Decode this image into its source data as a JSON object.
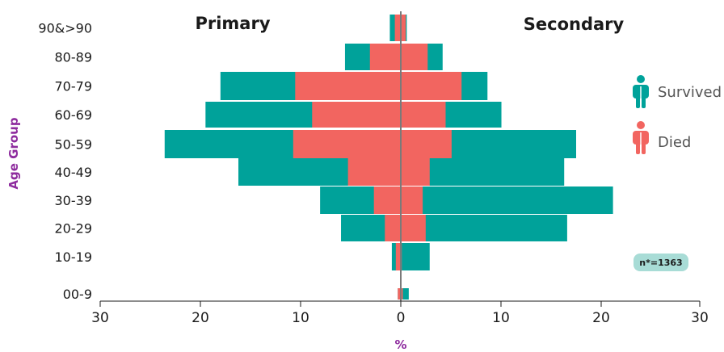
{
  "chart_data": {
    "type": "bar",
    "subtype": "population-pyramid",
    "xlabel": "%",
    "ylabel": "Age Group",
    "left_title": "Primary",
    "right_title": "Secondary",
    "xlim": [
      -30,
      30
    ],
    "x_ticks": [
      30,
      20,
      10,
      0,
      10,
      20,
      30
    ],
    "categories": [
      "00-9",
      "10-19",
      "20-29",
      "30-39",
      "40-49",
      "50-59",
      "60-69",
      "70-79",
      "80-89",
      "90&>90"
    ],
    "series": [
      {
        "name": "Survived",
        "color": "#00a29a",
        "primary": [
          0.3,
          0.9,
          6.0,
          8.1,
          16.3,
          23.7,
          19.6,
          18.1,
          5.6,
          1.1
        ],
        "secondary": [
          0.8,
          2.9,
          16.7,
          21.3,
          16.4,
          17.6,
          10.1,
          8.7,
          4.2,
          0.6
        ]
      },
      {
        "name": "Died",
        "color": "#f26560",
        "primary": [
          0.3,
          0.5,
          1.6,
          2.7,
          5.3,
          10.8,
          8.9,
          10.6,
          3.1,
          0.6
        ],
        "secondary": [
          0.2,
          0.1,
          2.5,
          2.2,
          2.9,
          5.1,
          4.5,
          6.1,
          2.7,
          0.5
        ]
      }
    ],
    "legend": {
      "position": "right",
      "icon": "person-icon"
    },
    "annotation": "n*=1363",
    "grid": false
  }
}
